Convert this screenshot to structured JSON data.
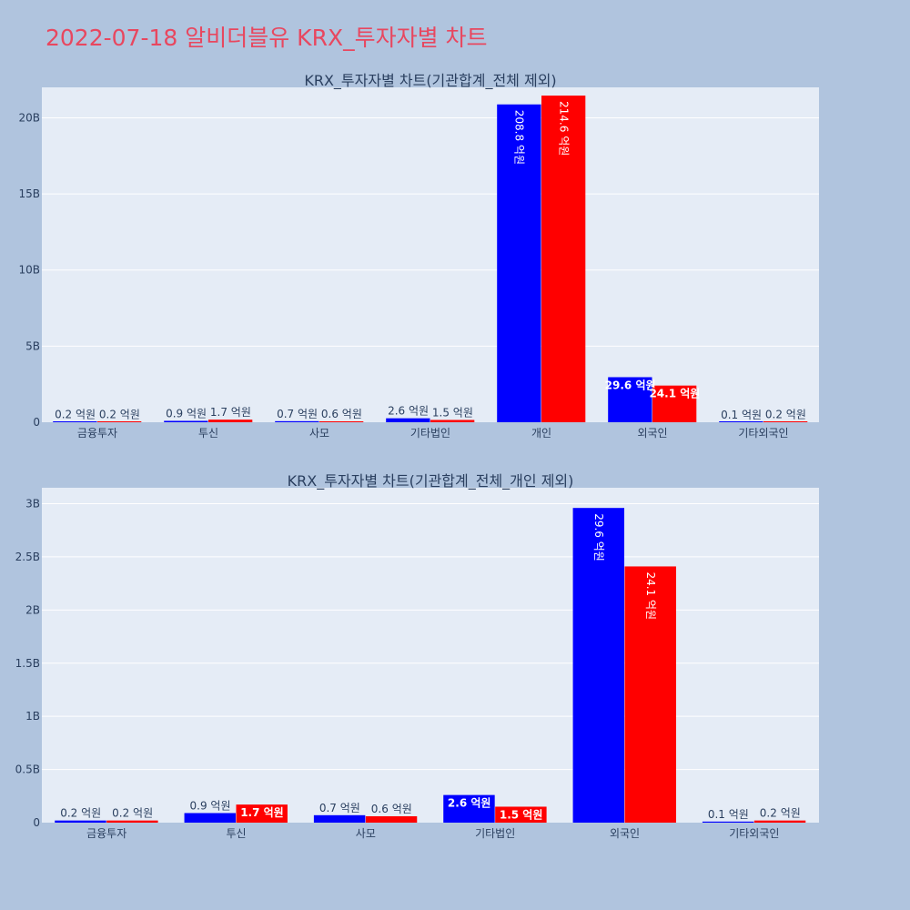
{
  "page": {
    "title": "2022-07-18 알비더블유 KRX_투자자별 차트",
    "background": "#b0c4de",
    "title_color": "#e8475f"
  },
  "colors": {
    "plot_bg": "#e5ecf6",
    "grid": "#ffffff",
    "buy": "#0000ff",
    "sell": "#ff0000",
    "text": "#2a3f5f"
  },
  "chart_data": [
    {
      "type": "bar",
      "title": "KRX_투자자별 차트(기관합계_전체 제외)",
      "categories": [
        "금융투자",
        "투신",
        "사모",
        "기타법인",
        "개인",
        "외국인",
        "기타외국인"
      ],
      "series": [
        {
          "color": "#0000ff",
          "values": [
            0.02,
            0.09,
            0.07,
            0.26,
            20.88,
            2.96,
            0.01
          ],
          "labels": [
            "0.2 억원",
            "0.9 억원",
            "0.7 억원",
            "2.6 억원",
            "208.8 억원",
            "29.6 억원",
            "0.1 억원"
          ]
        },
        {
          "color": "#ff0000",
          "values": [
            0.02,
            0.17,
            0.06,
            0.15,
            21.46,
            2.41,
            0.02
          ],
          "labels": [
            "0.2 억원",
            "1.7 억원",
            "0.6 억원",
            "1.5 억원",
            "214.6 억원",
            "24.1 억원",
            "0.2 억원"
          ]
        }
      ],
      "ylim": [
        0,
        22
      ],
      "yticks": [
        0,
        5,
        10,
        15,
        20
      ],
      "ytick_labels": [
        "0",
        "5B",
        "10B",
        "15B",
        "20B"
      ],
      "grid": true
    },
    {
      "type": "bar",
      "title": "KRX_투자자별 차트(기관합계_전체_개인 제외)",
      "categories": [
        "금융투자",
        "투신",
        "사모",
        "기타법인",
        "외국인",
        "기타외국인"
      ],
      "series": [
        {
          "color": "#0000ff",
          "values": [
            0.02,
            0.09,
            0.07,
            0.26,
            2.96,
            0.01
          ],
          "labels": [
            "0.2 억원",
            "0.9 억원",
            "0.7 억원",
            "2.6 억원",
            "29.6 억원",
            "0.1 억원"
          ]
        },
        {
          "color": "#ff0000",
          "values": [
            0.02,
            0.17,
            0.06,
            0.15,
            2.41,
            0.02
          ],
          "labels": [
            "0.2 억원",
            "1.7 억원",
            "0.6 억원",
            "1.5 억원",
            "24.1 억원",
            "0.2 억원"
          ]
        }
      ],
      "ylim": [
        0,
        3.15
      ],
      "yticks": [
        0,
        0.5,
        1,
        1.5,
        2,
        2.5,
        3
      ],
      "ytick_labels": [
        "0",
        "0.5B",
        "1B",
        "1.5B",
        "2B",
        "2.5B",
        "3B"
      ],
      "grid": true
    }
  ]
}
